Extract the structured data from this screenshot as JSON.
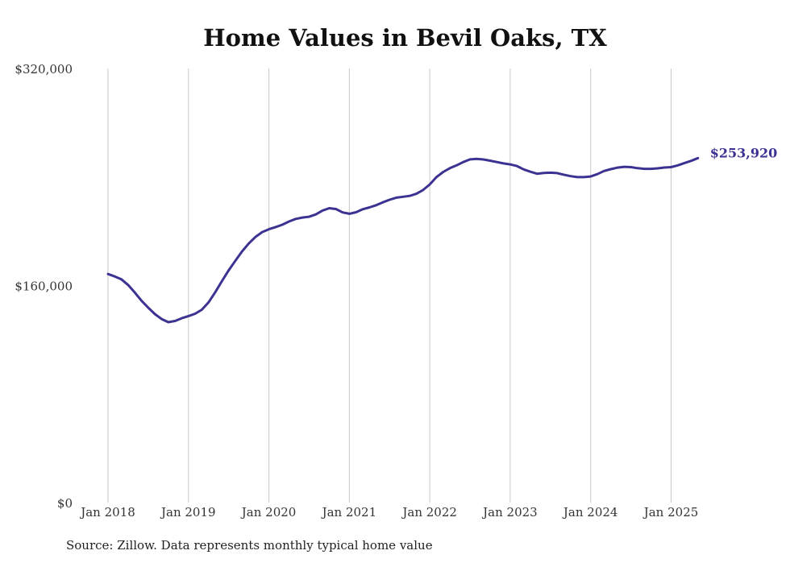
{
  "chart_data": {
    "type": "line",
    "title": "Home Values in Bevil Oaks, TX",
    "source": "Source: Zillow. Data represents monthly typical home value",
    "ylim": [
      0,
      320000
    ],
    "y_ticks": [
      {
        "value": 0,
        "label": "$0"
      },
      {
        "value": 160000,
        "label": "$160,000"
      },
      {
        "value": 320000,
        "label": "$320,000"
      }
    ],
    "x_ticks": [
      {
        "month": 0,
        "label": "Jan 2018"
      },
      {
        "month": 12,
        "label": "Jan 2019"
      },
      {
        "month": 24,
        "label": "Jan 2020"
      },
      {
        "month": 36,
        "label": "Jan 2021"
      },
      {
        "month": 48,
        "label": "Jan 2022"
      },
      {
        "month": 60,
        "label": "Jan 2023"
      },
      {
        "month": 72,
        "label": "Jan 2024"
      },
      {
        "month": 84,
        "label": "Jan 2025"
      }
    ],
    "grid": "vertical",
    "series": [
      {
        "name": "Typical home value",
        "color": "#3b3291",
        "end_label": "$253,920",
        "values": [
          168500,
          166700,
          164600,
          160400,
          154800,
          148800,
          143700,
          138900,
          135300,
          133000,
          133900,
          135900,
          137500,
          139200,
          142200,
          147600,
          155100,
          163300,
          171200,
          178300,
          185200,
          191000,
          195800,
          199400,
          201500,
          203100,
          204800,
          207200,
          209100,
          210100,
          210700,
          212400,
          215300,
          217000,
          216400,
          213900,
          212900,
          214000,
          216200,
          217600,
          219200,
          221300,
          223200,
          224800,
          225400,
          226100,
          227600,
          230400,
          234500,
          240000,
          243700,
          246500,
          248600,
          251000,
          253000,
          253400,
          252900,
          252000,
          251000,
          250000,
          249300,
          248100,
          245600,
          243900,
          242400,
          243000,
          243200,
          242900,
          241700,
          240600,
          239900,
          239900,
          240400,
          242100,
          244400,
          245800,
          246900,
          247500,
          247300,
          246500,
          246000,
          246000,
          246400,
          247000,
          247300,
          248600,
          250300,
          251900,
          253920
        ]
      }
    ]
  }
}
